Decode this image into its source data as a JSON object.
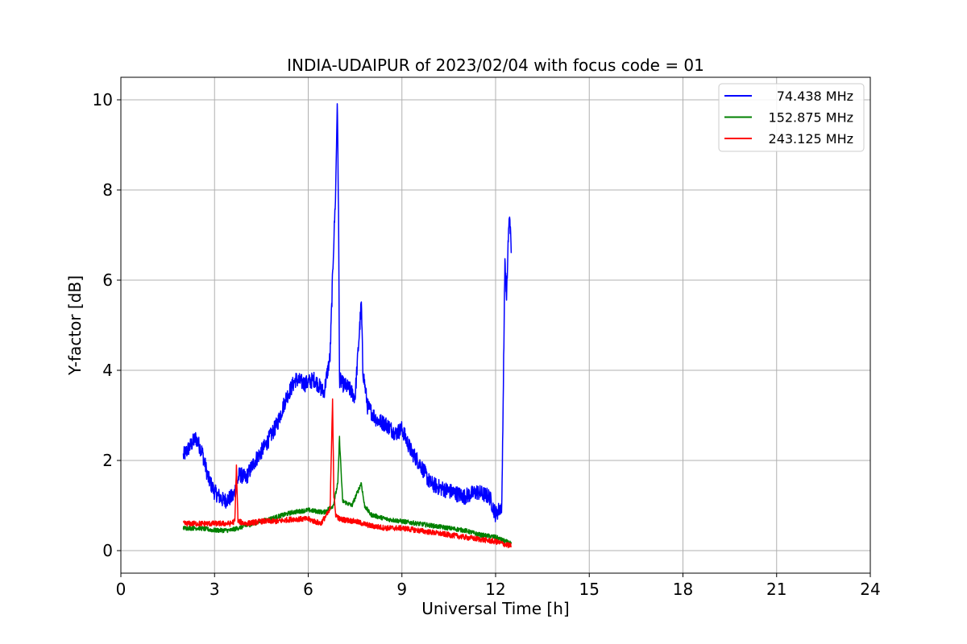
{
  "chart_data": {
    "type": "line",
    "title": "INDIA-UDAIPUR of 2023/02/04 with focus code = 01",
    "xlabel": "Universal Time [h]",
    "ylabel": "Y-factor [dB]",
    "xlim": [
      0,
      24
    ],
    "ylim": [
      -0.5,
      10.5
    ],
    "xticks": [
      0,
      3,
      6,
      9,
      12,
      15,
      18,
      21,
      24
    ],
    "xtick_labels": [
      "0",
      "3",
      "6",
      "9",
      "12",
      "15",
      "18",
      "21",
      "24"
    ],
    "yticks": [
      0,
      2,
      4,
      6,
      8,
      10
    ],
    "ytick_labels": [
      "0",
      "2",
      "4",
      "6",
      "8",
      "10"
    ],
    "grid": true,
    "legend_position": "upper-right",
    "series": [
      {
        "name": "  74.438 MHz",
        "color": "#0000ff",
        "x": [
          2.0,
          2.2,
          2.4,
          2.6,
          2.8,
          3.0,
          3.3,
          3.6,
          3.8,
          4.0,
          4.3,
          4.6,
          5.0,
          5.3,
          5.6,
          5.9,
          6.2,
          6.5,
          6.7,
          6.8,
          6.88,
          6.93,
          6.97,
          7.0,
          7.1,
          7.3,
          7.5,
          7.7,
          7.75,
          7.9,
          8.2,
          8.5,
          8.8,
          9.0,
          9.3,
          9.6,
          9.9,
          10.2,
          10.6,
          11.0,
          11.4,
          11.8,
          12.0,
          12.2,
          12.3,
          12.35,
          12.4,
          12.45,
          12.5
        ],
        "y": [
          2.1,
          2.3,
          2.5,
          2.2,
          1.6,
          1.3,
          1.1,
          1.2,
          1.7,
          1.6,
          2.0,
          2.3,
          2.8,
          3.4,
          3.8,
          3.7,
          3.8,
          3.5,
          4.3,
          6.5,
          8.0,
          10.0,
          7.5,
          3.8,
          3.7,
          3.6,
          3.4,
          5.5,
          4.0,
          3.2,
          2.9,
          2.8,
          2.6,
          2.7,
          2.2,
          1.9,
          1.5,
          1.4,
          1.3,
          1.2,
          1.3,
          1.2,
          0.8,
          1.0,
          6.5,
          5.5,
          6.8,
          7.5,
          6.6
        ],
        "noise": 0.18
      },
      {
        "name": "152.875 MHz",
        "color": "#008000",
        "x": [
          2.0,
          2.5,
          3.0,
          3.5,
          4.0,
          4.5,
          5.0,
          5.5,
          6.0,
          6.5,
          6.8,
          6.95,
          7.0,
          7.1,
          7.4,
          7.7,
          7.8,
          8.0,
          8.5,
          9.0,
          9.5,
          10.0,
          10.5,
          11.0,
          11.5,
          12.0,
          12.5
        ],
        "y": [
          0.5,
          0.5,
          0.45,
          0.45,
          0.55,
          0.65,
          0.75,
          0.85,
          0.9,
          0.85,
          1.0,
          1.5,
          2.5,
          1.1,
          1.0,
          1.5,
          1.0,
          0.8,
          0.7,
          0.65,
          0.6,
          0.55,
          0.5,
          0.45,
          0.35,
          0.3,
          0.15
        ],
        "noise": 0.05
      },
      {
        "name": "243.125 MHz",
        "color": "#ff0000",
        "x": [
          2.0,
          2.5,
          3.0,
          3.5,
          3.65,
          3.7,
          3.75,
          4.0,
          4.5,
          5.0,
          5.5,
          6.0,
          6.4,
          6.7,
          6.78,
          6.82,
          6.88,
          7.0,
          7.5,
          8.0,
          8.5,
          9.0,
          9.5,
          10.0,
          10.5,
          11.0,
          11.5,
          12.0,
          12.5
        ],
        "y": [
          0.6,
          0.6,
          0.6,
          0.6,
          0.65,
          1.9,
          0.65,
          0.6,
          0.65,
          0.65,
          0.7,
          0.7,
          0.6,
          0.9,
          3.4,
          1.2,
          0.8,
          0.7,
          0.65,
          0.55,
          0.5,
          0.5,
          0.45,
          0.4,
          0.35,
          0.3,
          0.25,
          0.2,
          0.1
        ],
        "noise": 0.06
      }
    ]
  }
}
